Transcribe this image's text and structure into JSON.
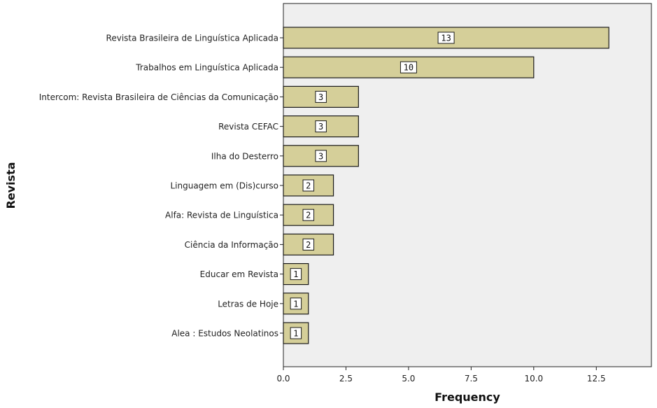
{
  "chart_data": {
    "type": "bar",
    "orientation": "horizontal",
    "title": "",
    "xlabel": "Frequency",
    "ylabel": "Revista",
    "categories": [
      "Revista Brasileira de Linguística Aplicada",
      "Trabalhos em Linguística Aplicada",
      "Intercom: Revista Brasileira de Ciências da Comunicação",
      "Revista CEFAC",
      "Ilha do Desterro",
      "Linguagem em (Dis)curso",
      "Alfa: Revista de Linguística",
      "Ciência da Informação",
      "Educar em Revista",
      "Letras de Hoje",
      "Alea : Estudos Neolatinos"
    ],
    "values": [
      13,
      10,
      3,
      3,
      3,
      2,
      2,
      2,
      1,
      1,
      1
    ],
    "data_labels": [
      "13",
      "10",
      "3",
      "3",
      "3",
      "2",
      "2",
      "2",
      "1",
      "1",
      "1"
    ],
    "xlim": [
      0,
      14.7
    ],
    "xticks": [
      0,
      2.5,
      5,
      7.5,
      10,
      12.5
    ],
    "xtick_labels": [
      "0.0",
      "2.5",
      "5.0",
      "7.5",
      "10.0",
      "12.5"
    ],
    "grid": false,
    "legend": "none",
    "colors": {
      "bar_fill": "#d5cf99",
      "bar_stroke": "#1a1a1a",
      "plot_background": "#efefef",
      "label_box": "#ffffff"
    }
  }
}
